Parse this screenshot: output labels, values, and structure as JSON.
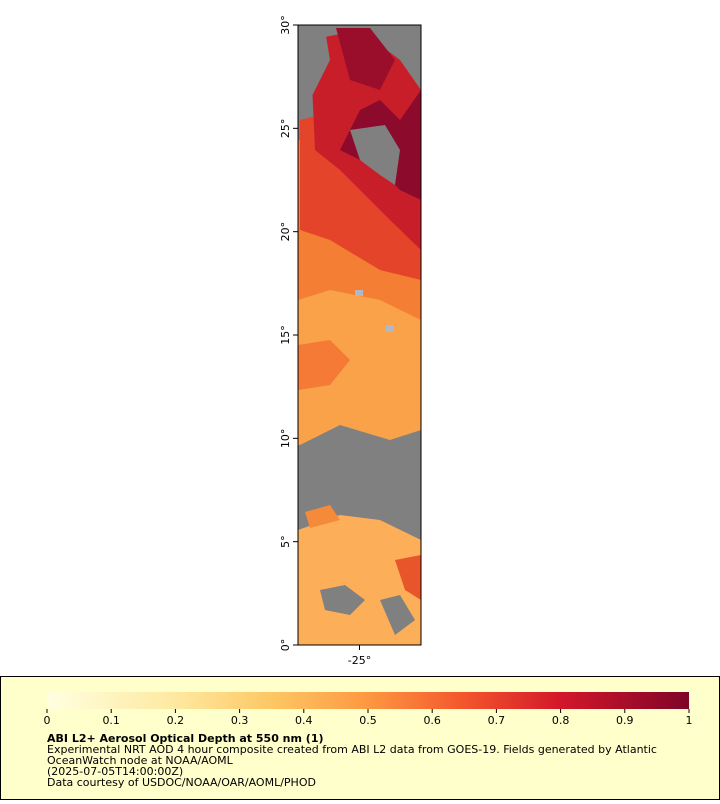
{
  "map": {
    "xlim": [
      -28,
      -22
    ],
    "ylim": [
      0,
      30
    ],
    "xticks": [
      {
        "value": -25,
        "label": "-25°"
      }
    ],
    "yticks": [
      {
        "value": 0,
        "label": "0°"
      },
      {
        "value": 5,
        "label": "5°"
      },
      {
        "value": 10,
        "label": "10°"
      },
      {
        "value": 15,
        "label": "15°"
      },
      {
        "value": 20,
        "label": "20°"
      },
      {
        "value": 25,
        "label": "25°"
      },
      {
        "value": 30,
        "label": "30°"
      }
    ]
  },
  "colorbar": {
    "lim": [
      0,
      1
    ],
    "ticks": [
      0,
      0.1,
      0.2,
      0.3,
      0.4,
      0.5,
      0.6,
      0.7,
      0.8,
      0.9,
      1
    ]
  },
  "legend": {
    "title": "ABI L2+ Aerosol Optical Depth at 550 nm (1)",
    "lines": [
      "Experimental NRT AOD 4 hour composite created from ABI L2 data from GOES-19. Fields generated by Atlantic",
      "OceanWatch node at NOAA/AOML",
      "(2025-07-05T14:00:00Z)",
      "Data courtesy of USDOC/NOAA/OAR/AOML/PHOD"
    ]
  }
}
